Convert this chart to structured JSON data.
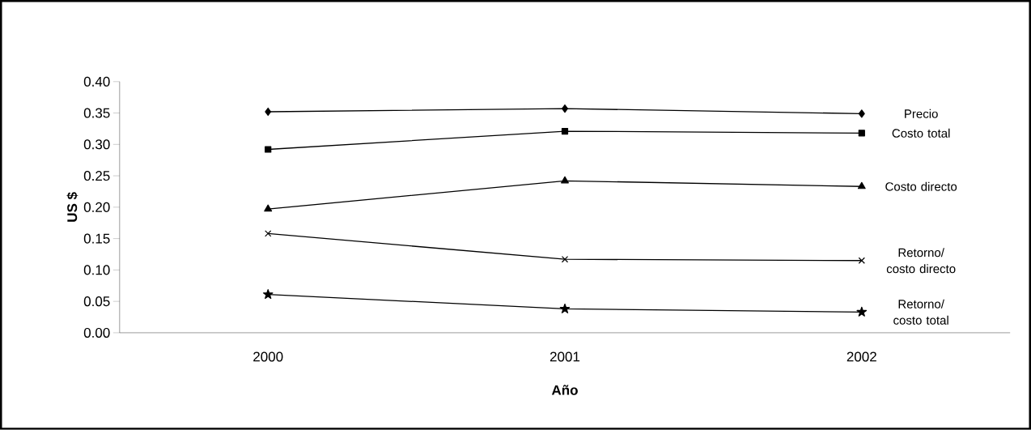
{
  "chart_data": {
    "type": "line",
    "xlabel": "Año",
    "ylabel": "US $",
    "categories": [
      "2000",
      "2001",
      "2002"
    ],
    "ylim": [
      0,
      0.4
    ],
    "yticks": [
      {
        "value": 0,
        "label": "0.00"
      },
      {
        "value": 0.05,
        "label": "0.05"
      },
      {
        "value": 0.1,
        "label": "0.10"
      },
      {
        "value": 0.15,
        "label": "0.15"
      },
      {
        "value": 0.2,
        "label": "0.20"
      },
      {
        "value": 0.25,
        "label": "0.25"
      },
      {
        "value": 0.3,
        "label": "0.30"
      },
      {
        "value": 0.35,
        "label": "0.35"
      },
      {
        "value": 0.4,
        "label": "0.40"
      }
    ],
    "grid": false,
    "line_style": "solid",
    "series": [
      {
        "name": "Precio",
        "color": "#000000",
        "marker": "diamond",
        "values": [
          0.352,
          0.357,
          0.349
        ]
      },
      {
        "name": "Costo total",
        "color": "#000000",
        "marker": "square",
        "values": [
          0.292,
          0.321,
          0.318
        ]
      },
      {
        "name": "Costo directo",
        "color": "#000000",
        "marker": "triangle",
        "values": [
          0.197,
          0.242,
          0.233
        ]
      },
      {
        "name": "Retorno/ costo directo",
        "color": "#000000",
        "marker": "cross",
        "values": [
          0.158,
          0.117,
          0.115
        ]
      },
      {
        "name": "Retorno/ costo total",
        "color": "#000000",
        "marker": "star",
        "values": [
          0.061,
          0.038,
          0.033
        ]
      }
    ]
  }
}
